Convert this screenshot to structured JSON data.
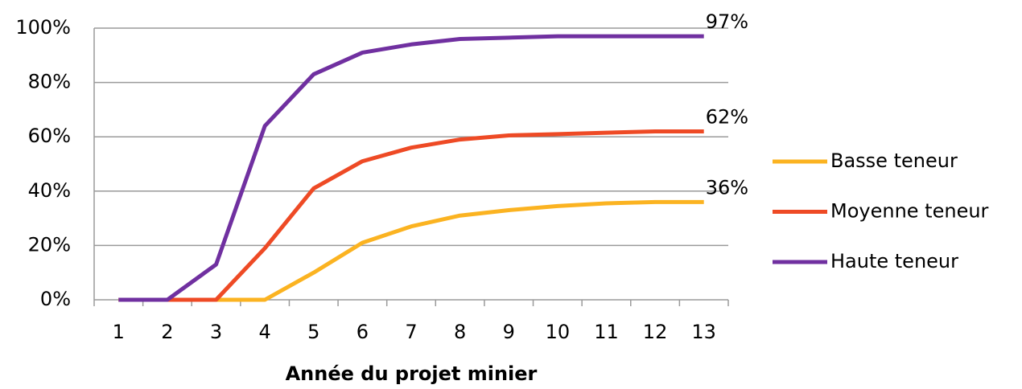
{
  "chart_data": {
    "type": "line",
    "x_label": "Année du projet minier",
    "categories": [
      "1",
      "2",
      "3",
      "4",
      "5",
      "6",
      "7",
      "8",
      "9",
      "10",
      "11",
      "12",
      "13"
    ],
    "series": [
      {
        "name": "Basse teneur",
        "color": "#fbb321",
        "values": [
          0,
          0,
          0,
          0,
          10,
          21,
          27,
          31,
          33,
          34.5,
          35.5,
          36,
          36
        ],
        "value_labels": [
          null,
          null,
          null,
          null,
          null,
          null,
          null,
          null,
          null,
          null,
          null,
          null,
          "36%"
        ]
      },
      {
        "name": "Moyenne teneur",
        "color": "#ee4a25",
        "values": [
          0,
          0,
          0,
          19,
          41,
          51,
          56,
          59,
          60.5,
          61,
          61.5,
          62,
          62
        ],
        "value_labels": [
          null,
          null,
          null,
          null,
          null,
          null,
          null,
          null,
          null,
          null,
          null,
          null,
          "62%"
        ]
      },
      {
        "name": "Haute teneur",
        "color": "#7030a0",
        "values": [
          0,
          0,
          13,
          64,
          83,
          91,
          94,
          96,
          96.5,
          97,
          97,
          97,
          97
        ],
        "value_labels": [
          null,
          null,
          null,
          null,
          null,
          null,
          null,
          null,
          null,
          null,
          null,
          null,
          "97%"
        ]
      }
    ],
    "ylim": [
      0,
      100
    ],
    "yticks": [
      {
        "value": 0,
        "label": "0%"
      },
      {
        "value": 20,
        "label": "20%"
      },
      {
        "value": 40,
        "label": "40%"
      },
      {
        "value": 60,
        "label": "60%"
      },
      {
        "value": 80,
        "label": "80%"
      },
      {
        "value": 100,
        "label": "100%"
      }
    ],
    "grid": true,
    "legend": "right"
  }
}
